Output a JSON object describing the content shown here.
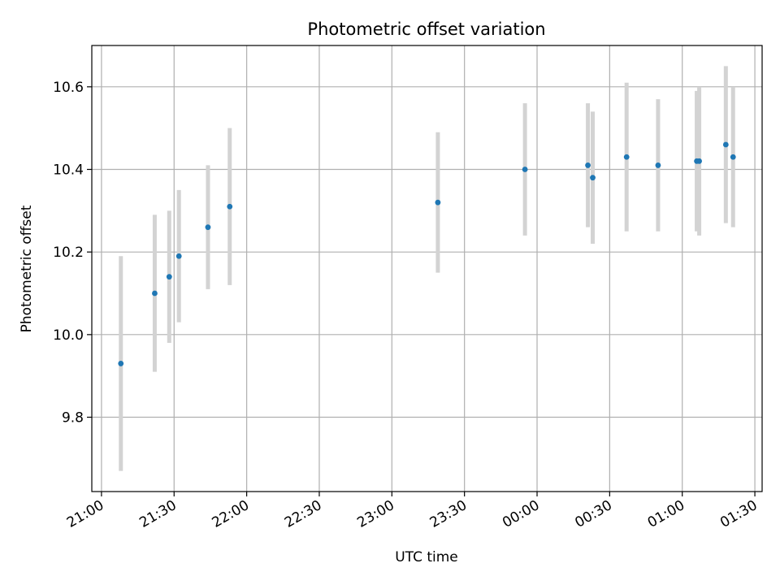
{
  "chart_data": {
    "type": "scatter",
    "title": "Photometric offset variation",
    "xlabel": "UTC time",
    "ylabel": "Photometric offset",
    "x_ticks": [
      "21:00",
      "21:30",
      "22:00",
      "22:30",
      "23:00",
      "23:30",
      "00:00",
      "00:30",
      "01:00",
      "01:30"
    ],
    "x_tick_times": [
      "21:00",
      "21:30",
      "22:00",
      "22:30",
      "23:00",
      "23:30",
      "00:00",
      "00:30",
      "01:00",
      "01:30"
    ],
    "y_ticks": [
      9.8,
      10.0,
      10.2,
      10.4,
      10.6
    ],
    "xlim": [
      "20:56",
      "01:33"
    ],
    "ylim": [
      9.62,
      10.7
    ],
    "grid": true,
    "colors": {
      "points": "#1f77b4",
      "errorbars": "#d3d3d3",
      "grid": "#b0b0b0"
    },
    "series": [
      {
        "points": [
          {
            "x": "21:08",
            "y": 9.93,
            "err": 0.26
          },
          {
            "x": "21:22",
            "y": 10.1,
            "err": 0.19
          },
          {
            "x": "21:28",
            "y": 10.14,
            "err": 0.16
          },
          {
            "x": "21:32",
            "y": 10.19,
            "err": 0.16
          },
          {
            "x": "21:44",
            "y": 10.26,
            "err": 0.15
          },
          {
            "x": "21:53",
            "y": 10.31,
            "err": 0.19
          },
          {
            "x": "23:19",
            "y": 10.32,
            "err": 0.17
          },
          {
            "x": "23:55",
            "y": 10.4,
            "err": 0.16
          },
          {
            "x": "00:21",
            "y": 10.41,
            "err": 0.15
          },
          {
            "x": "00:23",
            "y": 10.38,
            "err": 0.16
          },
          {
            "x": "00:37",
            "y": 10.43,
            "err": 0.18
          },
          {
            "x": "00:50",
            "y": 10.41,
            "err": 0.16
          },
          {
            "x": "01:06",
            "y": 10.42,
            "err": 0.17
          },
          {
            "x": "01:07",
            "y": 10.42,
            "err": 0.18
          },
          {
            "x": "01:18",
            "y": 10.46,
            "err": 0.19
          },
          {
            "x": "01:21",
            "y": 10.43,
            "err": 0.17
          }
        ]
      }
    ]
  }
}
